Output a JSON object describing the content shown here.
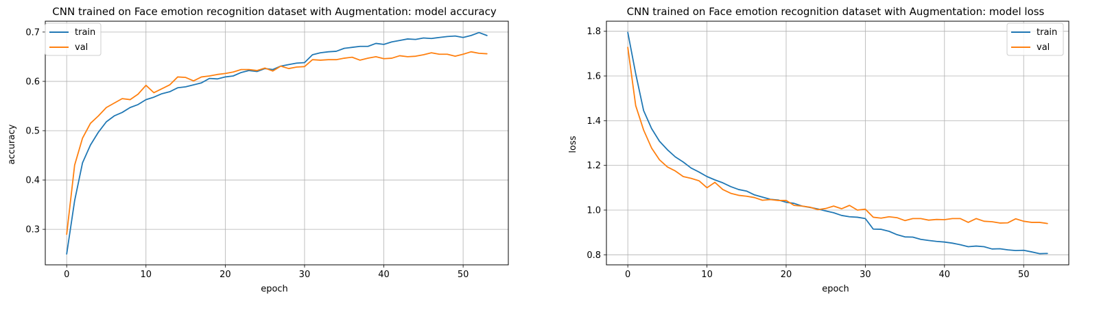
{
  "colors": {
    "train": "#1f77b4",
    "val": "#ff7f0e",
    "grid": "#b0b0b0"
  },
  "chart_data": [
    {
      "type": "line",
      "title": "CNN trained on Face emotion recognition dataset with Augmentation: model accuracy",
      "xlabel": "epoch",
      "ylabel": "accuracy",
      "xlim": [
        -2.7,
        55.7
      ],
      "ylim": [
        0.228,
        0.722
      ],
      "xticks": [
        0,
        10,
        20,
        30,
        40,
        50
      ],
      "xtick_labels": [
        "0",
        "10",
        "20",
        "30",
        "40",
        "50"
      ],
      "yticks": [
        0.3,
        0.4,
        0.5,
        0.6,
        0.7
      ],
      "ytick_labels": [
        "0.3",
        "0.4",
        "0.5",
        "0.6",
        "0.7"
      ],
      "grid": true,
      "legend_position": "upper left",
      "series": [
        {
          "name": "train",
          "color": "#1f77b4",
          "values": [
            0.25,
            0.358,
            0.435,
            0.471,
            0.497,
            0.518,
            0.53,
            0.537,
            0.547,
            0.553,
            0.563,
            0.568,
            0.575,
            0.579,
            0.587,
            0.589,
            0.593,
            0.597,
            0.606,
            0.605,
            0.609,
            0.611,
            0.618,
            0.622,
            0.62,
            0.626,
            0.624,
            0.631,
            0.634,
            0.637,
            0.638,
            0.654,
            0.658,
            0.66,
            0.661,
            0.667,
            0.669,
            0.671,
            0.671,
            0.677,
            0.675,
            0.68,
            0.683,
            0.686,
            0.685,
            0.688,
            0.687,
            0.689,
            0.691,
            0.692,
            0.689,
            0.693,
            0.699,
            0.693
          ]
        },
        {
          "name": "val",
          "color": "#ff7f0e",
          "values": [
            0.29,
            0.43,
            0.485,
            0.515,
            0.53,
            0.547,
            0.556,
            0.565,
            0.563,
            0.574,
            0.592,
            0.577,
            0.585,
            0.593,
            0.609,
            0.608,
            0.601,
            0.609,
            0.611,
            0.614,
            0.616,
            0.619,
            0.624,
            0.624,
            0.622,
            0.627,
            0.621,
            0.631,
            0.626,
            0.629,
            0.63,
            0.644,
            0.643,
            0.644,
            0.644,
            0.647,
            0.649,
            0.643,
            0.647,
            0.65,
            0.646,
            0.647,
            0.652,
            0.65,
            0.651,
            0.654,
            0.658,
            0.655,
            0.655,
            0.651,
            0.655,
            0.66,
            0.657,
            0.656
          ]
        }
      ]
    },
    {
      "type": "line",
      "title": "CNN trained on  Face emotion recognition dataset with Augmentation: model loss",
      "xlabel": "epoch",
      "ylabel": "loss",
      "xlim": [
        -2.7,
        55.7
      ],
      "ylim": [
        0.755,
        1.845
      ],
      "xticks": [
        0,
        10,
        20,
        30,
        40,
        50
      ],
      "xtick_labels": [
        "0",
        "10",
        "20",
        "30",
        "40",
        "50"
      ],
      "yticks": [
        0.8,
        1.0,
        1.2,
        1.4,
        1.6,
        1.8
      ],
      "ytick_labels": [
        "0.8",
        "1.0",
        "1.2",
        "1.4",
        "1.6",
        "1.8"
      ],
      "grid": true,
      "legend_position": "upper right",
      "series": [
        {
          "name": "train",
          "color": "#1f77b4",
          "values": [
            1.795,
            1.61,
            1.445,
            1.365,
            1.308,
            1.27,
            1.238,
            1.215,
            1.188,
            1.17,
            1.15,
            1.135,
            1.122,
            1.105,
            1.092,
            1.085,
            1.068,
            1.058,
            1.048,
            1.045,
            1.035,
            1.03,
            1.018,
            1.012,
            1.005,
            0.996,
            0.988,
            0.976,
            0.97,
            0.968,
            0.962,
            0.915,
            0.914,
            0.905,
            0.89,
            0.88,
            0.879,
            0.869,
            0.864,
            0.86,
            0.857,
            0.852,
            0.845,
            0.836,
            0.839,
            0.836,
            0.826,
            0.827,
            0.822,
            0.819,
            0.82,
            0.813,
            0.805,
            0.806
          ]
        },
        {
          "name": "val",
          "color": "#ff7f0e",
          "values": [
            1.728,
            1.467,
            1.358,
            1.278,
            1.225,
            1.193,
            1.175,
            1.15,
            1.142,
            1.131,
            1.1,
            1.124,
            1.092,
            1.075,
            1.066,
            1.062,
            1.056,
            1.044,
            1.047,
            1.043,
            1.043,
            1.021,
            1.018,
            1.013,
            1.002,
            1.007,
            1.018,
            1.006,
            1.021,
            1.0,
            1.004,
            0.968,
            0.964,
            0.97,
            0.966,
            0.953,
            0.962,
            0.962,
            0.955,
            0.958,
            0.957,
            0.962,
            0.962,
            0.945,
            0.962,
            0.95,
            0.948,
            0.942,
            0.943,
            0.961,
            0.95,
            0.945,
            0.945,
            0.94
          ]
        }
      ]
    }
  ]
}
